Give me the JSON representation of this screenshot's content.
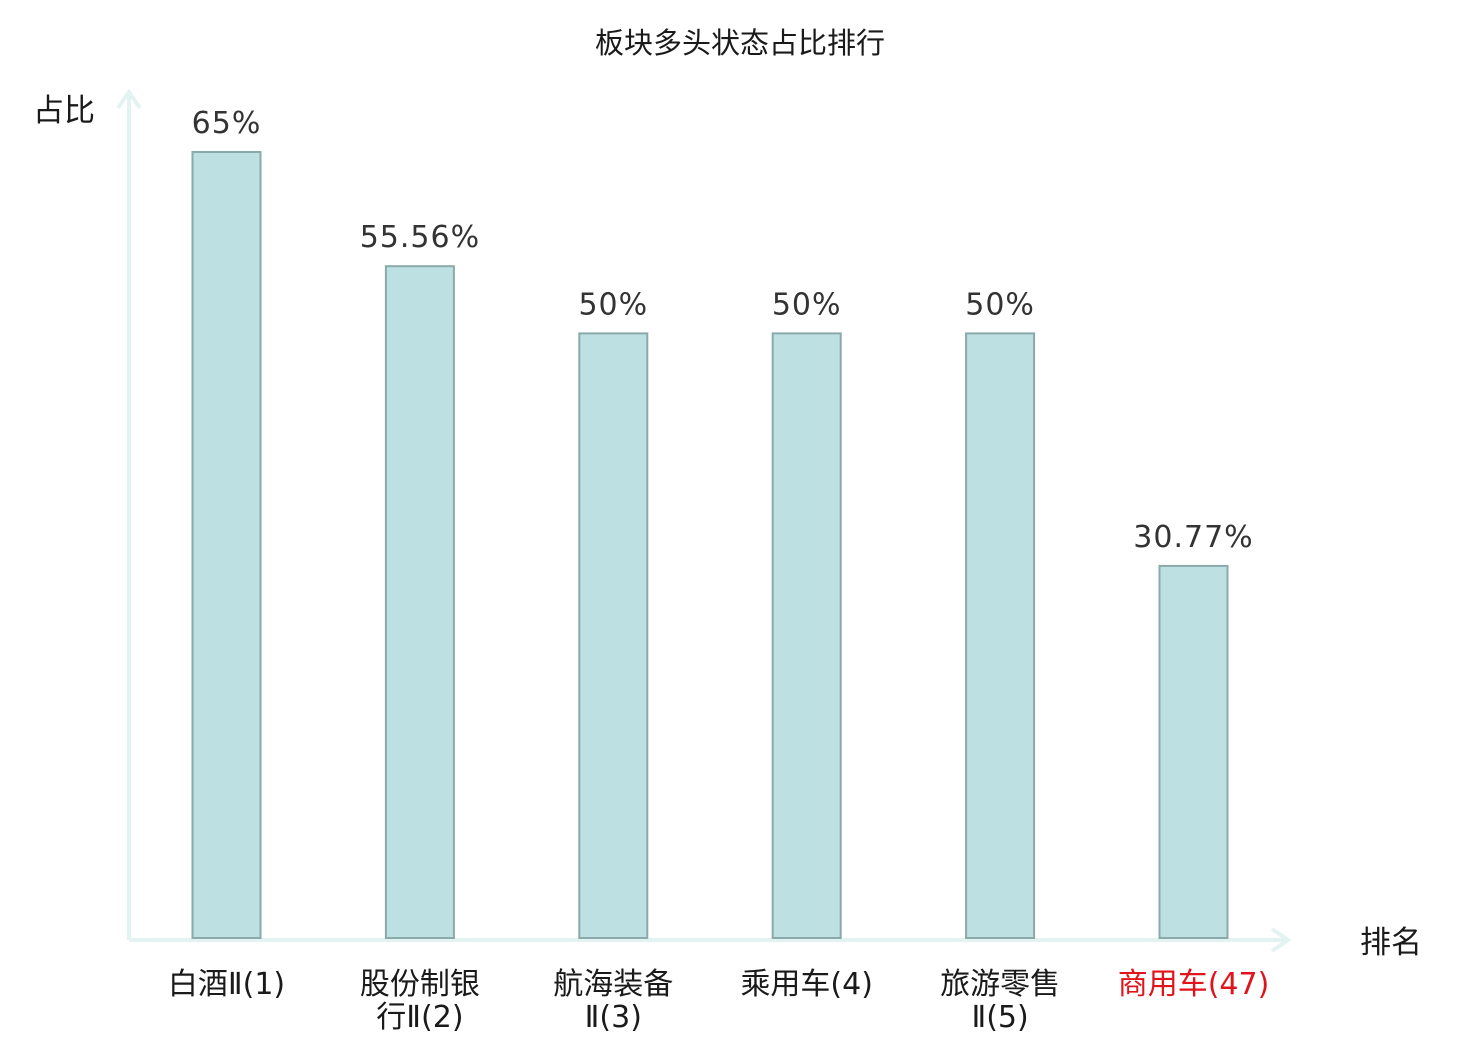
{
  "colors": {
    "bar_fill": "#bde1e3",
    "bar_stroke": "#8aa9ab",
    "axis": "#e2f3f1",
    "highlight_text": "#e0151b",
    "text": "#1a1a1a",
    "value_text": "#333333"
  },
  "chart_data": {
    "type": "bar",
    "title": "板块多头状态占比排行",
    "ylabel": "占比",
    "xlabel": "排名",
    "ylim": [
      0,
      65
    ],
    "grid": false,
    "categories": [
      {
        "lines": [
          "白酒Ⅱ(1)"
        ],
        "highlight": false
      },
      {
        "lines": [
          "股份制银",
          "行Ⅱ(2)"
        ],
        "highlight": false
      },
      {
        "lines": [
          "航海装备",
          "Ⅱ(3)"
        ],
        "highlight": false
      },
      {
        "lines": [
          "乘用车(4)"
        ],
        "highlight": false
      },
      {
        "lines": [
          "旅游零售",
          "Ⅱ(5)"
        ],
        "highlight": false
      },
      {
        "lines": [
          "商用车(47)"
        ],
        "highlight": true
      }
    ],
    "values": [
      65,
      55.56,
      50,
      50,
      50,
      30.77
    ],
    "value_labels": [
      "65%",
      "55.56%",
      "50%",
      "50%",
      "50%",
      "30.77%"
    ]
  }
}
